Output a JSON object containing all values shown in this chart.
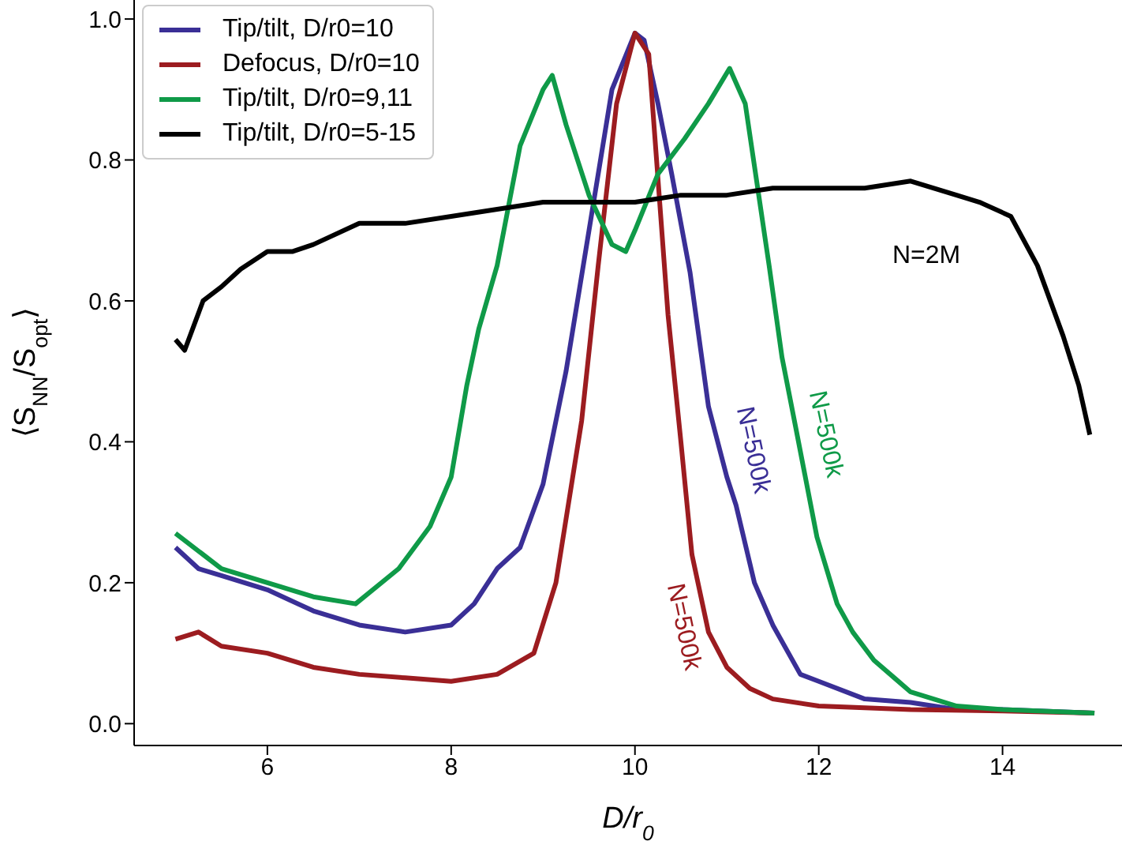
{
  "chart_data": {
    "type": "line",
    "xlabel": "D/r$_{0}$",
    "ylabel": "⟨S$_{NN}$/S$_{opt}$⟩",
    "xlim": [
      4.55,
      15.3
    ],
    "ylim": [
      -0.031,
      1.027
    ],
    "xticks": [
      6,
      8,
      10,
      12,
      14
    ],
    "yticks": [
      {
        "value": 0,
        "label": "0.0"
      },
      {
        "value": 0.2,
        "label": "0.2"
      },
      {
        "value": 0.4,
        "label": "0.4"
      },
      {
        "value": 0.6,
        "label": "0.6"
      },
      {
        "value": 0.8,
        "label": "0.8"
      },
      {
        "value": 1,
        "label": "1.0"
      }
    ],
    "legend": "top left",
    "series": [
      {
        "name": "Tip/tilt, D/r0=10",
        "color": "#3a2f96",
        "x": [
          5,
          5.25,
          5.5,
          6,
          6.5,
          7,
          7.5,
          8,
          8.25,
          8.5,
          8.75,
          9,
          9.25,
          9.5,
          9.75,
          10,
          10.1,
          10.25,
          10.4,
          10.6,
          10.8,
          11,
          11.1,
          11.3,
          11.5,
          11.8,
          12,
          12.5,
          13,
          13.5,
          14,
          15
        ],
        "values": [
          0.25,
          0.22,
          0.21,
          0.19,
          0.16,
          0.14,
          0.13,
          0.14,
          0.17,
          0.22,
          0.25,
          0.34,
          0.5,
          0.7,
          0.9,
          0.98,
          0.97,
          0.88,
          0.78,
          0.64,
          0.45,
          0.35,
          0.31,
          0.2,
          0.14,
          0.07,
          0.06,
          0.035,
          0.03,
          0.02,
          0.02,
          0.015
        ]
      },
      {
        "name": "Defocus, D/r0=10",
        "color": "#9c1c20",
        "x": [
          5,
          5.25,
          5.5,
          6,
          6.5,
          7,
          7.5,
          8,
          8.5,
          8.9,
          9.14,
          9.42,
          9.6,
          9.8,
          10,
          10.15,
          10.36,
          10.5,
          10.62,
          10.8,
          11,
          11.25,
          11.5,
          12,
          13,
          14,
          15
        ],
        "values": [
          0.12,
          0.13,
          0.11,
          0.1,
          0.08,
          0.07,
          0.065,
          0.06,
          0.07,
          0.1,
          0.2,
          0.43,
          0.65,
          0.88,
          0.98,
          0.95,
          0.58,
          0.4,
          0.24,
          0.13,
          0.08,
          0.05,
          0.035,
          0.025,
          0.02,
          0.018,
          0.015
        ]
      },
      {
        "name": "Tip/tilt, D/r0=9,11",
        "color": "#0f9a48",
        "x": [
          5,
          5.5,
          6,
          6.5,
          6.96,
          7.43,
          7.77,
          8,
          8.17,
          8.3,
          8.5,
          8.75,
          9,
          9.1,
          9.25,
          9.5,
          9.75,
          9.9,
          10,
          10.25,
          10.54,
          10.8,
          11.03,
          11.2,
          11.46,
          11.6,
          11.75,
          11.98,
          12.2,
          12.37,
          12.6,
          12.84,
          13,
          13.5,
          14,
          15
        ],
        "values": [
          0.27,
          0.22,
          0.2,
          0.18,
          0.17,
          0.22,
          0.28,
          0.35,
          0.48,
          0.56,
          0.65,
          0.82,
          0.9,
          0.92,
          0.85,
          0.75,
          0.68,
          0.67,
          0.7,
          0.78,
          0.83,
          0.88,
          0.93,
          0.88,
          0.65,
          0.52,
          0.42,
          0.265,
          0.17,
          0.13,
          0.09,
          0.063,
          0.045,
          0.025,
          0.02,
          0.015
        ]
      },
      {
        "name": "Tip/tilt, D/r0=5-15",
        "color": "#000000",
        "x": [
          5,
          5.1,
          5.3,
          5.5,
          5.71,
          6,
          6.27,
          6.5,
          7,
          7.5,
          8,
          8.5,
          9,
          9.5,
          10,
          10.5,
          11,
          11.5,
          12,
          12.5,
          13,
          13.5,
          13.75,
          14.09,
          14.38,
          14.66,
          14.83,
          14.95
        ],
        "values": [
          0.545,
          0.53,
          0.6,
          0.62,
          0.645,
          0.67,
          0.67,
          0.68,
          0.71,
          0.71,
          0.72,
          0.73,
          0.74,
          0.74,
          0.74,
          0.75,
          0.75,
          0.76,
          0.76,
          0.76,
          0.77,
          0.75,
          0.74,
          0.72,
          0.65,
          0.55,
          0.48,
          0.41
        ]
      }
    ],
    "annotations": [
      "N=500k",
      "N=500k",
      "N=500k",
      "N=2M"
    ]
  }
}
